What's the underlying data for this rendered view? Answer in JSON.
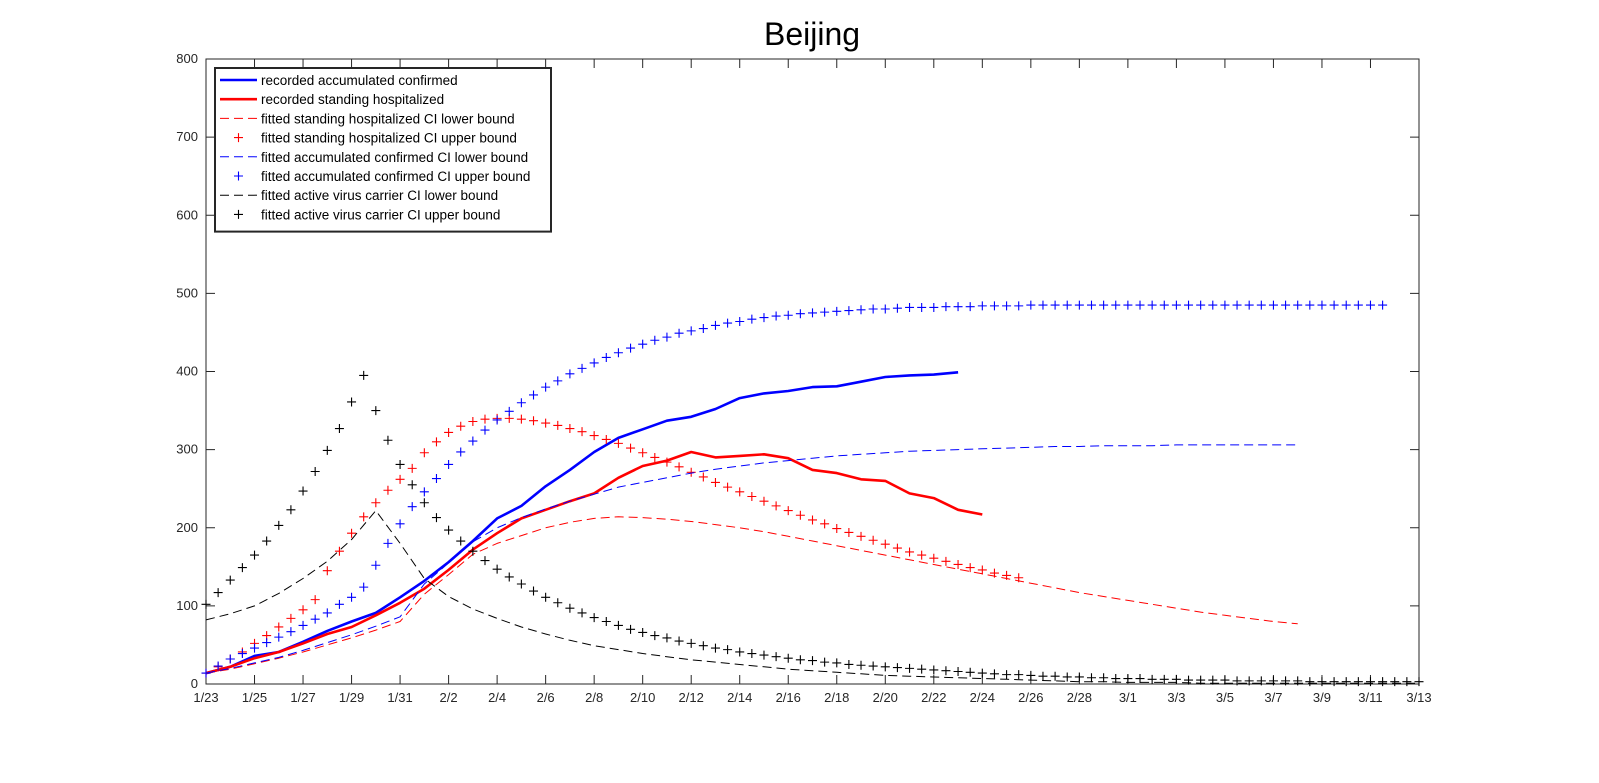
{
  "chart_data": {
    "type": "line",
    "title": "Beijing",
    "xlabel": "",
    "ylabel": "",
    "x_start_date": "1/23",
    "xlim": [
      0,
      50
    ],
    "ylim": [
      0,
      800
    ],
    "x_tick_labels": [
      "1/23",
      "1/25",
      "1/27",
      "1/29",
      "1/31",
      "2/2",
      "2/4",
      "2/6",
      "2/8",
      "2/10",
      "2/12",
      "2/14",
      "2/16",
      "2/18",
      "2/20",
      "2/22",
      "2/24",
      "2/26",
      "2/28",
      "3/1",
      "3/3",
      "3/5",
      "3/7",
      "3/9",
      "3/11",
      "3/13"
    ],
    "y_ticks": [
      0,
      100,
      200,
      300,
      400,
      500,
      600,
      700,
      800
    ],
    "legend_position": "top-left",
    "grid": false,
    "series": [
      {
        "name": "recorded accumulated confirmed",
        "style": "solid",
        "color": "#0000ff",
        "values": [
          14,
          22,
          36,
          41,
          54,
          68,
          80,
          91,
          111,
          132,
          156,
          183,
          212,
          228,
          253,
          274,
          297,
          315,
          326,
          337,
          342,
          352,
          366,
          372,
          375,
          380,
          381,
          387,
          393,
          395,
          396,
          399
        ]
      },
      {
        "name": "recorded standing hospitalized",
        "style": "solid",
        "color": "#ff0000",
        "values": [
          14,
          22,
          33,
          41,
          52,
          64,
          73,
          88,
          104,
          122,
          146,
          172,
          193,
          212,
          223,
          234,
          244,
          264,
          279,
          286,
          297,
          290,
          292,
          294,
          289,
          274,
          270,
          262,
          260,
          244,
          238,
          223,
          217
        ]
      },
      {
        "name": "fitted standing hospitalized CI lower bound",
        "style": "dash",
        "color": "#ff0000",
        "values": [
          14,
          19,
          26,
          33,
          41,
          50,
          59,
          69,
          80,
          115,
          140,
          166,
          180,
          190,
          200,
          207,
          212,
          214,
          213,
          211,
          208,
          204,
          200,
          195,
          189,
          183,
          177,
          171,
          165,
          159,
          153,
          147,
          141,
          135,
          129,
          123,
          117,
          112,
          107,
          102,
          97,
          92,
          88,
          84,
          80,
          77
        ]
      },
      {
        "name": "fitted standing hospitalized CI upper bound",
        "style": "plus",
        "color": "#ff0000",
        "values": [
          14,
          22,
          32,
          41,
          52,
          62,
          73,
          84,
          95,
          108,
          145,
          170,
          193,
          214,
          232,
          248,
          262,
          276,
          296,
          310,
          322,
          330,
          336,
          339,
          340,
          340,
          339,
          337,
          334,
          331,
          327,
          323,
          318,
          313,
          308,
          302,
          296,
          290,
          284,
          278,
          271,
          265,
          258,
          252,
          246,
          240,
          234,
          228,
          222,
          216,
          210,
          205,
          199,
          194,
          189,
          184,
          179,
          174,
          169,
          165,
          161,
          157,
          153,
          149,
          146,
          142,
          139,
          136
        ]
      },
      {
        "name": "fitted accumulated confirmed CI lower bound",
        "style": "dash",
        "color": "#0000ff",
        "values": [
          14,
          20,
          27,
          34,
          43,
          53,
          63,
          74,
          86,
          128,
          155,
          182,
          200,
          213,
          224,
          234,
          243,
          252,
          258,
          264,
          270,
          275,
          279,
          283,
          286,
          289,
          292,
          294,
          296,
          298,
          299,
          300,
          301,
          302,
          303,
          304,
          304,
          305,
          305,
          305,
          306,
          306,
          306,
          306,
          306,
          306
        ]
      },
      {
        "name": "fitted accumulated confirmed CI upper bound",
        "style": "plus",
        "color": "#0000ff",
        "values": [
          14,
          23,
          32,
          39,
          46,
          53,
          60,
          67,
          75,
          83,
          91,
          102,
          111,
          124,
          152,
          180,
          205,
          227,
          246,
          263,
          281,
          297,
          311,
          325,
          338,
          349,
          360,
          370,
          380,
          388,
          397,
          404,
          411,
          418,
          424,
          430,
          435,
          440,
          444,
          449,
          452,
          455,
          459,
          462,
          464,
          467,
          469,
          471,
          472,
          474,
          475,
          476,
          477,
          478,
          479,
          480,
          480,
          481,
          482,
          482,
          482,
          483,
          483,
          483,
          484,
          484,
          484,
          484,
          485,
          485,
          485,
          485,
          485,
          485,
          485,
          485,
          485,
          485,
          485,
          485,
          485,
          485,
          485,
          485,
          485,
          485,
          485,
          485,
          485,
          485,
          485,
          485,
          485,
          485,
          485,
          485,
          485,
          485
        ]
      },
      {
        "name": "fitted active virus carrier CI lower bound",
        "style": "dash",
        "color": "#000000",
        "values": [
          82,
          90,
          100,
          116,
          135,
          157,
          185,
          222,
          180,
          135,
          112,
          96,
          84,
          73,
          64,
          56,
          49,
          44,
          39,
          35,
          31,
          28,
          25,
          22,
          19,
          17,
          15,
          13,
          11,
          10,
          9,
          8,
          7,
          6,
          5,
          4,
          3,
          3,
          2,
          2,
          2,
          1,
          1,
          1,
          1,
          1,
          1,
          1,
          1,
          1,
          1
        ]
      },
      {
        "name": "fitted active virus carrier CI upper bound",
        "style": "plus",
        "color": "#000000",
        "values": [
          102,
          117,
          133,
          149,
          165,
          183,
          203,
          223,
          247,
          272,
          299,
          327,
          361,
          395,
          350,
          312,
          281,
          255,
          232,
          213,
          197,
          183,
          170,
          158,
          147,
          137,
          128,
          119,
          111,
          104,
          97,
          91,
          85,
          80,
          75,
          70,
          66,
          62,
          59,
          55,
          52,
          49,
          46,
          44,
          41,
          39,
          37,
          35,
          33,
          31,
          30,
          28,
          27,
          25,
          24,
          23,
          22,
          21,
          20,
          19,
          18,
          17,
          16,
          15,
          14,
          13,
          12,
          12,
          11,
          10,
          10,
          9,
          9,
          8,
          8,
          7,
          7,
          7,
          6,
          6,
          6,
          5,
          5,
          5,
          5,
          4,
          4,
          4,
          4,
          4,
          4,
          3,
          3,
          3,
          3,
          3,
          3,
          3,
          3,
          3,
          3
        ]
      }
    ]
  }
}
